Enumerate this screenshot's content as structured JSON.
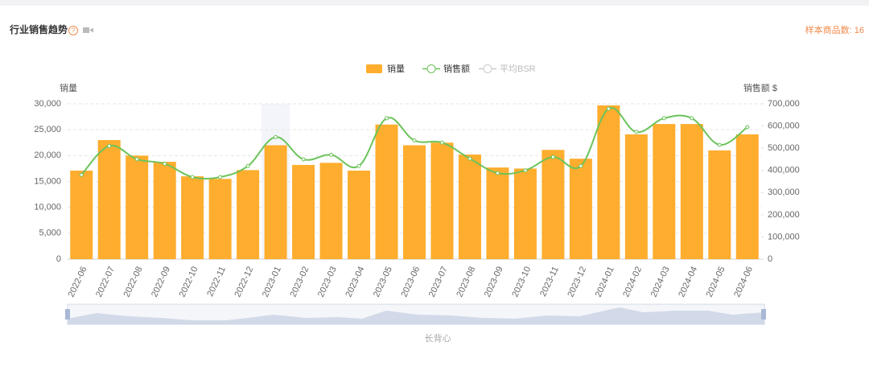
{
  "chart_data": {
    "type": "bar_line",
    "title": "行业销售趋势",
    "sample_note": "样本商品数: 16",
    "footer": "长背心",
    "ylabel": "销量",
    "y2label": "销售额 $",
    "categories": [
      "2022-06",
      "2022-07",
      "2022-08",
      "2022-09",
      "2022-10",
      "2022-11",
      "2022-12",
      "2023-01",
      "2023-02",
      "2023-03",
      "2023-04",
      "2023-05",
      "2023-06",
      "2023-07",
      "2023-08",
      "2023-09",
      "2023-10",
      "2023-11",
      "2023-12",
      "2024-01",
      "2024-02",
      "2024-03",
      "2024-04",
      "2024-05",
      "2024-06"
    ],
    "series": [
      {
        "name": "销量",
        "color": "#ffad2e",
        "kind": "bar",
        "values": [
          17100,
          23000,
          20000,
          18800,
          16000,
          15500,
          17200,
          22000,
          18200,
          18600,
          17100,
          26000,
          22000,
          22500,
          20200,
          17700,
          17500,
          21100,
          19400,
          29700,
          24100,
          26100,
          26100,
          21000,
          24100
        ]
      },
      {
        "name": "销售额",
        "color": "#6cc35a",
        "kind": "line",
        "axis": "y2",
        "values": [
          380000,
          510000,
          450000,
          430000,
          370000,
          370000,
          420000,
          550000,
          450000,
          470000,
          420000,
          635000,
          535000,
          525000,
          453000,
          388000,
          400000,
          460000,
          420000,
          678000,
          573000,
          635000,
          635000,
          515000,
          595000
        ]
      }
    ],
    "legend_inactive": [
      "平均BSR"
    ],
    "ylim": [
      0,
      30000
    ],
    "yticks": [
      0,
      {
        "value": 5000,
        "label": "5,000"
      },
      {
        "value": 10000,
        "label": "10,000"
      },
      {
        "value": 15000,
        "label": "15,000"
      },
      {
        "value": 20000,
        "label": "20,000"
      },
      {
        "value": 25000,
        "label": "25,000"
      },
      {
        "value": 30000,
        "label": "30,000"
      }
    ],
    "y2lim": [
      0,
      700000
    ],
    "y2ticks": [
      0,
      {
        "value": 100000,
        "label": "100,000"
      },
      {
        "value": 200000,
        "label": "200,000"
      },
      {
        "value": 300000,
        "label": "300,000"
      },
      {
        "value": 400000,
        "label": "400,000"
      },
      {
        "value": 500000,
        "label": "500,000"
      },
      {
        "value": 600000,
        "label": "600,000"
      },
      {
        "value": 700000,
        "label": "700,000"
      }
    ],
    "grid": true
  }
}
